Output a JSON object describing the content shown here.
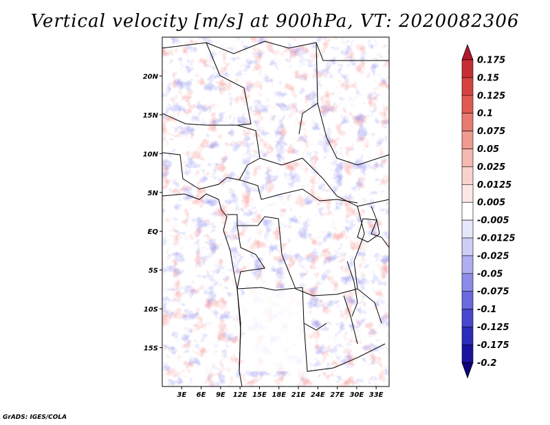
{
  "title": "Vertical velocity [m/s] at 900hPa, VT: 2020082306",
  "footer": "GrADS: IGES/COLA",
  "map": {
    "lon_range": [
      0,
      35
    ],
    "lat_range": [
      -20,
      25
    ],
    "lon_ticks": [
      "3E",
      "6E",
      "9E",
      "12E",
      "15E",
      "18E",
      "21E",
      "24E",
      "27E",
      "30E",
      "33E"
    ],
    "lat_ticks": [
      "20N",
      "15N",
      "10N",
      "5N",
      "EQ",
      "5S",
      "10S",
      "15S"
    ]
  },
  "colorbar": {
    "top_arrow_color": "#b2182b",
    "bottom_arrow_color": "#10007a",
    "labels": [
      "0.175",
      "0.15",
      "0.125",
      "0.1",
      "0.075",
      "0.05",
      "0.025",
      "0.0125",
      "0.005",
      "-0.005",
      "-0.0125",
      "-0.025",
      "-0.05",
      "-0.075",
      "-0.1",
      "-0.125",
      "-0.175",
      "-0.2"
    ],
    "colors": [
      "#b2182b",
      "#c52f34",
      "#d6433e",
      "#e05a52",
      "#e87a70",
      "#ef9a90",
      "#f4b9b0",
      "#f8d2cc",
      "#fce9e6",
      "#ffffff",
      "#e7e7fb",
      "#cdcdf6",
      "#aeaef0",
      "#8c8ce8",
      "#6a6ade",
      "#4747cf",
      "#2c2cba",
      "#1a13a0",
      "#10007a"
    ]
  }
}
